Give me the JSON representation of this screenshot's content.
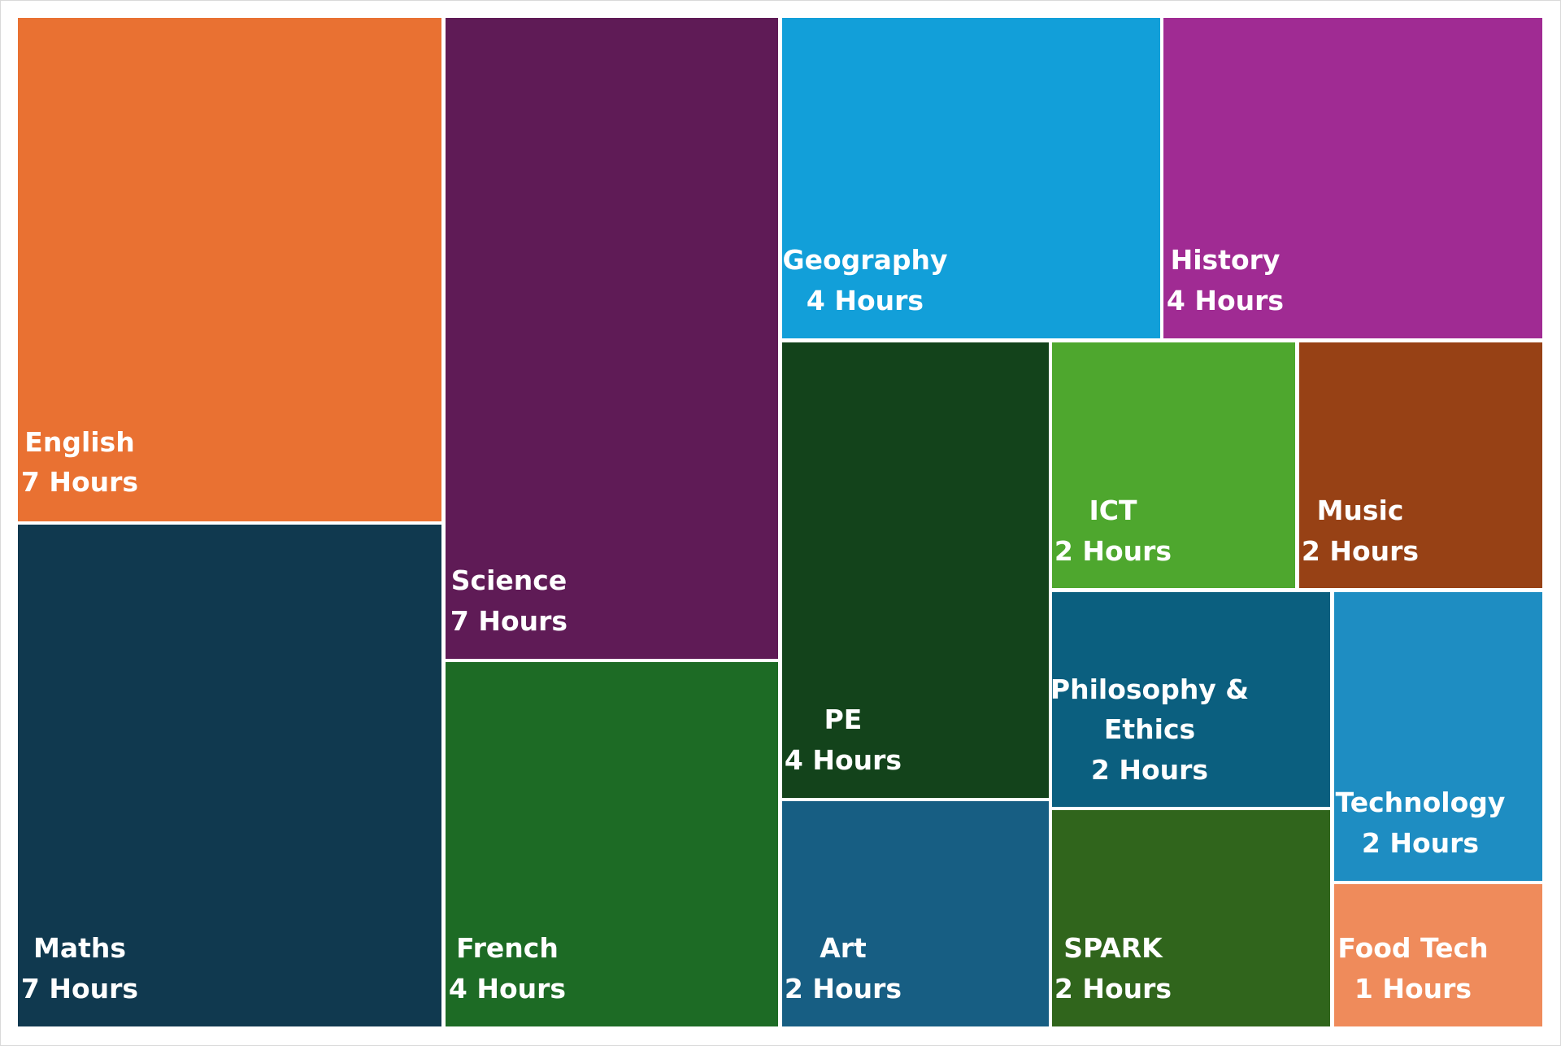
{
  "chart_data": {
    "type": "treemap",
    "title": "",
    "unit": "Hours",
    "items": [
      {
        "name": "English",
        "value": 7,
        "label": "7 Hours",
        "color": "#E97132"
      },
      {
        "name": "Maths",
        "value": 7,
        "label": "7 Hours",
        "color": "#10394F"
      },
      {
        "name": "Science",
        "value": 7,
        "label": "7 Hours",
        "color": "#5F1B56"
      },
      {
        "name": "French",
        "value": 4,
        "label": "4 Hours",
        "color": "#1D6B25"
      },
      {
        "name": "Geography",
        "value": 4,
        "label": "4 Hours",
        "color": "#129FD9"
      },
      {
        "name": "History",
        "value": 4,
        "label": "4 Hours",
        "color": "#A02B93"
      },
      {
        "name": "PE",
        "value": 4,
        "label": "4 Hours",
        "color": "#13431B"
      },
      {
        "name": "Art",
        "value": 2,
        "label": "2 Hours",
        "color": "#175E83"
      },
      {
        "name": "ICT",
        "value": 2,
        "label": "2 Hours",
        "color": "#4EA72E"
      },
      {
        "name": "Music",
        "value": 2,
        "label": "2 Hours",
        "color": "#974115"
      },
      {
        "name": "Philosophy & Ethics",
        "value": 2,
        "label": "2 Hours",
        "color": "#0B5F7F",
        "lines": [
          "Philosophy &",
          "Ethics"
        ]
      },
      {
        "name": "SPARK",
        "value": 2,
        "label": "2 Hours",
        "color": "#30651C"
      },
      {
        "name": "Technology",
        "value": 2,
        "label": "2 Hours",
        "color": "#1E8DC2"
      },
      {
        "name": "Food Tech",
        "value": 1,
        "label": "1 Hours",
        "color": "#EF8B5B"
      }
    ]
  }
}
